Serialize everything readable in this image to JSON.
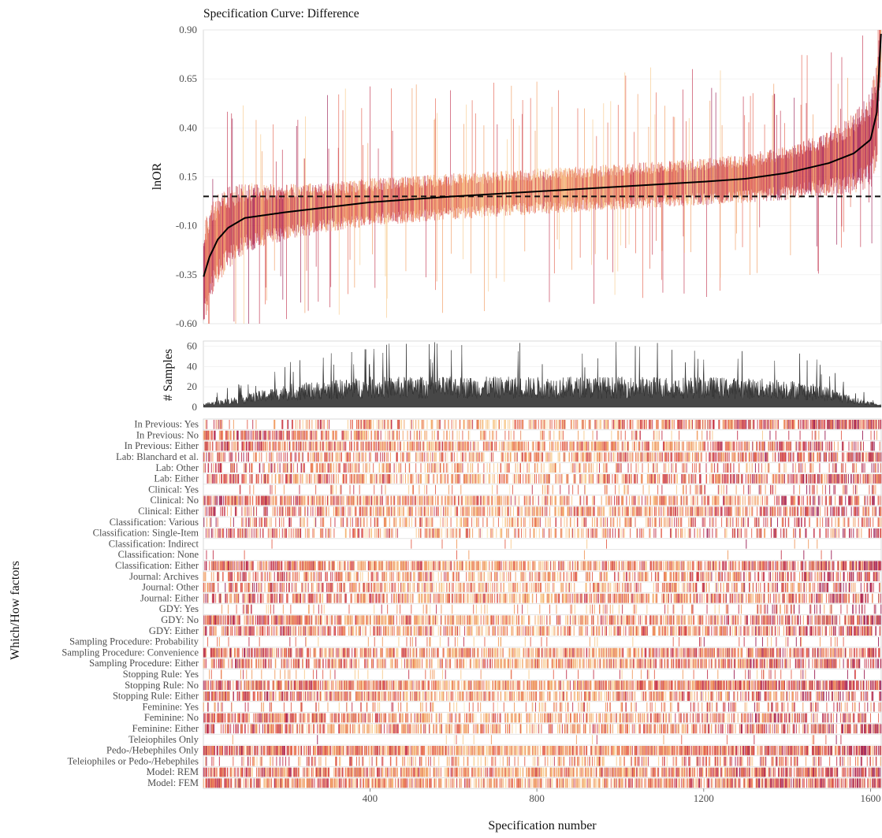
{
  "chart_data": {
    "type": "specification-curve",
    "title": "Specification Curve: Difference",
    "n_specifications": 1625,
    "x_axis": {
      "label": "Specification number",
      "range": [
        1,
        1625
      ],
      "ticks": [
        400,
        800,
        1200,
        1600
      ],
      "tick_labels": [
        "400",
        "800",
        "1200",
        "1600"
      ]
    },
    "estimate_panel": {
      "ylabel": "lnOR",
      "ylim": [
        -0.6,
        0.9
      ],
      "ticks": [
        -0.6,
        -0.35,
        -0.1,
        0.15,
        0.4,
        0.65,
        0.9
      ],
      "tick_labels": [
        "-0.60",
        "-0.35",
        "-0.10",
        "0.15",
        "0.40",
        "0.65",
        "0.90"
      ],
      "reference_line_value": 0.05,
      "curve_points": [
        {
          "x": 1,
          "y": -0.36
        },
        {
          "x": 15,
          "y": -0.26
        },
        {
          "x": 35,
          "y": -0.17
        },
        {
          "x": 60,
          "y": -0.11
        },
        {
          "x": 100,
          "y": -0.06
        },
        {
          "x": 200,
          "y": -0.03
        },
        {
          "x": 400,
          "y": 0.02
        },
        {
          "x": 600,
          "y": 0.05
        },
        {
          "x": 800,
          "y": 0.075
        },
        {
          "x": 1000,
          "y": 0.1
        },
        {
          "x": 1200,
          "y": 0.125
        },
        {
          "x": 1300,
          "y": 0.14
        },
        {
          "x": 1400,
          "y": 0.17
        },
        {
          "x": 1500,
          "y": 0.22
        },
        {
          "x": 1560,
          "y": 0.27
        },
        {
          "x": 1600,
          "y": 0.34
        },
        {
          "x": 1615,
          "y": 0.48
        },
        {
          "x": 1625,
          "y": 0.88
        }
      ]
    },
    "samples_panel": {
      "ylabel": "# Samples",
      "ylim": [
        0,
        65
      ],
      "ticks": [
        0,
        20,
        40,
        60
      ],
      "tick_labels": [
        "0",
        "20",
        "40",
        "60"
      ],
      "profile_points": [
        {
          "x": 1,
          "y": 3
        },
        {
          "x": 100,
          "y": 10
        },
        {
          "x": 200,
          "y": 18
        },
        {
          "x": 400,
          "y": 24
        },
        {
          "x": 600,
          "y": 24
        },
        {
          "x": 800,
          "y": 24
        },
        {
          "x": 1000,
          "y": 24
        },
        {
          "x": 1200,
          "y": 24
        },
        {
          "x": 1400,
          "y": 22
        },
        {
          "x": 1500,
          "y": 16
        },
        {
          "x": 1560,
          "y": 8
        },
        {
          "x": 1625,
          "y": 2
        }
      ]
    },
    "factor_panel": {
      "ylabel": "Which/How factors",
      "palette": [
        "#f8e6c0",
        "#f7c98b",
        "#f09a5e",
        "#e3604d",
        "#c2334d",
        "#9a1c52"
      ],
      "factors": [
        {
          "label": "In Previous: Yes",
          "density": [
            0.18,
            0.55,
            0.8
          ]
        },
        {
          "label": "In Previous: No",
          "density": [
            0.75,
            0.15,
            0.06
          ]
        },
        {
          "label": "In Previous: Either",
          "density": [
            0.55,
            0.6,
            0.55
          ]
        },
        {
          "label": "Lab: Blanchard et al.",
          "density": [
            0.4,
            0.5,
            0.7
          ]
        },
        {
          "label": "Lab: Other",
          "density": [
            0.45,
            0.3,
            0.2
          ]
        },
        {
          "label": "Lab: Either",
          "density": [
            0.6,
            0.55,
            0.65
          ]
        },
        {
          "label": "Clinical: Yes",
          "density": [
            0.05,
            0.1,
            0.25
          ]
        },
        {
          "label": "Clinical: No",
          "density": [
            0.75,
            0.4,
            0.45
          ]
        },
        {
          "label": "Clinical: Either",
          "density": [
            0.5,
            0.6,
            0.55
          ]
        },
        {
          "label": "Classification: Various",
          "density": [
            0.3,
            0.35,
            0.3
          ]
        },
        {
          "label": "Classification: Single-Item",
          "density": [
            0.45,
            0.35,
            0.3
          ]
        },
        {
          "label": "Classification: Indirect",
          "density": [
            0.01,
            0.02,
            0.04
          ]
        },
        {
          "label": "Classification: None",
          "density": [
            0.01,
            0.01,
            0.02
          ]
        },
        {
          "label": "Classification: Either",
          "density": [
            0.7,
            0.7,
            0.7
          ]
        },
        {
          "label": "Journal: Archives",
          "density": [
            0.45,
            0.45,
            0.5
          ]
        },
        {
          "label": "Journal: Other",
          "density": [
            0.45,
            0.45,
            0.45
          ]
        },
        {
          "label": "Journal: Either",
          "density": [
            0.6,
            0.6,
            0.6
          ]
        },
        {
          "label": "GDY: Yes",
          "density": [
            0.1,
            0.1,
            0.2
          ]
        },
        {
          "label": "GDY: No",
          "density": [
            0.7,
            0.6,
            0.6
          ]
        },
        {
          "label": "GDY: Either",
          "density": [
            0.55,
            0.55,
            0.6
          ]
        },
        {
          "label": "Sampling Procedure: Probability",
          "density": [
            0.05,
            0.05,
            0.06
          ]
        },
        {
          "label": "Sampling Procedure: Convenience",
          "density": [
            0.7,
            0.65,
            0.7
          ]
        },
        {
          "label": "Sampling Procedure: Either",
          "density": [
            0.55,
            0.55,
            0.55
          ]
        },
        {
          "label": "Stopping Rule: Yes",
          "density": [
            0.08,
            0.06,
            0.1
          ]
        },
        {
          "label": "Stopping Rule: No",
          "density": [
            0.7,
            0.8,
            0.92
          ]
        },
        {
          "label": "Stopping Rule: Either",
          "density": [
            0.65,
            0.55,
            0.5
          ]
        },
        {
          "label": "Feminine: Yes",
          "density": [
            0.1,
            0.15,
            0.25
          ]
        },
        {
          "label": "Feminine: No",
          "density": [
            0.85,
            0.45,
            0.4
          ]
        },
        {
          "label": "Feminine: Either",
          "density": [
            0.5,
            0.55,
            0.55
          ]
        },
        {
          "label": "Teleiophiles Only",
          "density": [
            0.01,
            0.02,
            0.03
          ]
        },
        {
          "label": "Pedo-/Hebephiles Only",
          "density": [
            0.9,
            0.85,
            0.9
          ]
        },
        {
          "label": "Teleiophiles or Pedo-/Hebephiles",
          "density": [
            0.2,
            0.25,
            0.3
          ]
        },
        {
          "label": "Model: REM",
          "density": [
            0.75,
            0.7,
            0.75
          ]
        },
        {
          "label": "Model: FEM",
          "density": [
            0.7,
            0.7,
            0.7
          ]
        }
      ]
    }
  }
}
